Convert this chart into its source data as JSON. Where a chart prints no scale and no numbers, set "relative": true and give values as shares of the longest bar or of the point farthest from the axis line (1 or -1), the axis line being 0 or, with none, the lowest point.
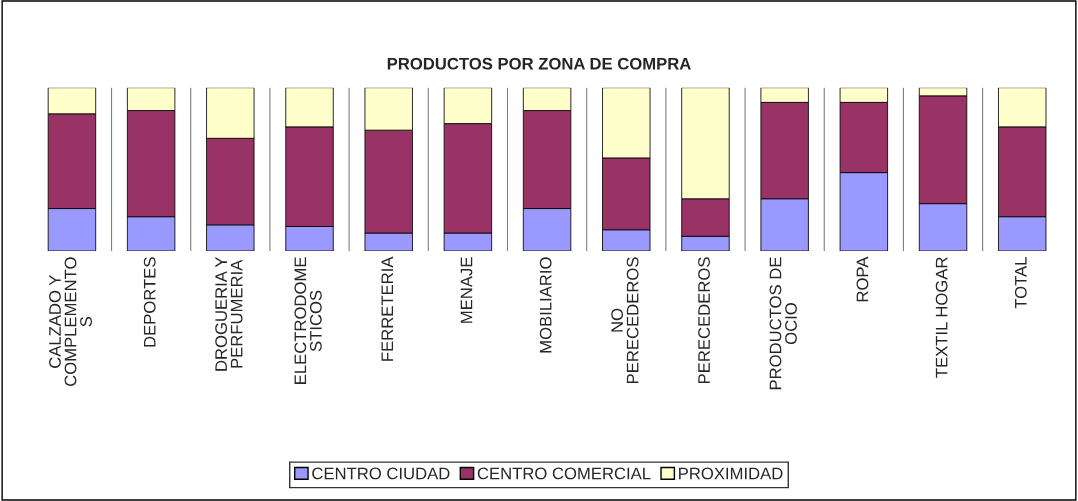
{
  "chart_data": {
    "type": "bar",
    "title": "PRODUCTOS POR ZONA DE COMPRA",
    "stacked": true,
    "relative": true,
    "grid": "x",
    "legend": "bottom",
    "categories": [
      "CALZADO Y\nCOMPLEMENTO\nS",
      "DEPORTES",
      "DROGUERIA Y\nPERFUMERIA",
      "ELECTRODOME\nSTICOS",
      "FERRETERIA",
      "MENAJE",
      "MOBILIARIO",
      "NO\nPERECEDEROS",
      "PERECEDEROS",
      "PRODUCTOS DE\nOCIO",
      "ROPA",
      "TEXTIL HOGAR",
      "TOTAL"
    ],
    "series": [
      {
        "name": "CENTRO CIUDAD",
        "color": "#9999ff",
        "values": [
          0.26,
          0.21,
          0.16,
          0.15,
          0.11,
          0.11,
          0.26,
          0.13,
          0.09,
          0.32,
          0.48,
          0.29,
          0.21
        ]
      },
      {
        "name": "CENTRO COMERCIAL",
        "color": "#993366",
        "values": [
          0.58,
          0.65,
          0.53,
          0.61,
          0.63,
          0.67,
          0.6,
          0.44,
          0.23,
          0.59,
          0.43,
          0.66,
          0.55
        ]
      },
      {
        "name": "PROXIMIDAD",
        "color": "#ffffcc",
        "values": [
          0.16,
          0.14,
          0.31,
          0.24,
          0.26,
          0.22,
          0.14,
          0.43,
          0.68,
          0.09,
          0.09,
          0.05,
          0.24
        ]
      }
    ]
  }
}
